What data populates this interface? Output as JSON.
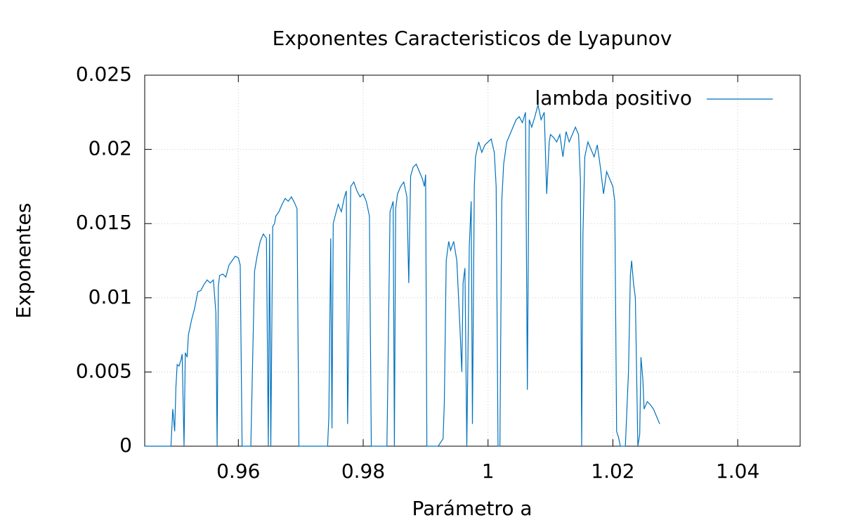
{
  "chart_data": {
    "type": "line",
    "title": "Exponentes Caracteristicos de Lyapunov",
    "x_label": "Parámetro a",
    "y_label": "Exponentes",
    "xlim": [
      0.945,
      1.05
    ],
    "ylim": [
      0,
      0.025
    ],
    "xticks": [
      0.96,
      0.98,
      1,
      1.02,
      1.04
    ],
    "yticks": [
      0,
      0.005,
      0.01,
      0.015,
      0.02,
      0.025
    ],
    "grid": true,
    "legend": "top-right",
    "x": [
      0.945,
      0.9492,
      0.9495,
      0.9498,
      0.95,
      0.9502,
      0.9505,
      0.9508,
      0.951,
      0.9513,
      0.9515,
      0.9518,
      0.952,
      0.9525,
      0.953,
      0.9535,
      0.954,
      0.9545,
      0.955,
      0.9555,
      0.956,
      0.9564,
      0.9566,
      0.9568,
      0.957,
      0.9575,
      0.958,
      0.9585,
      0.959,
      0.9595,
      0.96,
      0.9603,
      0.9606,
      0.9615,
      0.962,
      0.9623,
      0.9626,
      0.963,
      0.9635,
      0.964,
      0.9645,
      0.9648,
      0.965,
      0.9652,
      0.9655,
      0.9658,
      0.966,
      0.9665,
      0.967,
      0.9675,
      0.968,
      0.9685,
      0.969,
      0.9694,
      0.9697,
      0.972,
      0.9743,
      0.9745,
      0.9748,
      0.975,
      0.9752,
      0.9755,
      0.976,
      0.9765,
      0.977,
      0.9773,
      0.9775,
      0.978,
      0.9785,
      0.979,
      0.9795,
      0.98,
      0.9805,
      0.981,
      0.9813,
      0.9825,
      0.9838,
      0.984,
      0.9843,
      0.9848,
      0.985,
      0.9852,
      0.9855,
      0.986,
      0.9865,
      0.987,
      0.9873,
      0.9876,
      0.988,
      0.9885,
      0.989,
      0.9895,
      0.9898,
      0.99,
      0.9902,
      0.991,
      0.992,
      0.9928,
      0.993,
      0.9933,
      0.9937,
      0.994,
      0.9945,
      0.995,
      0.9955,
      0.9958,
      0.996,
      0.9963,
      0.9966,
      0.997,
      0.9973,
      0.9975,
      0.9978,
      0.998,
      0.9985,
      0.999,
      0.9995,
      1.0,
      1.0005,
      1.001,
      1.0013,
      1.0016,
      1.0019,
      1.0022,
      1.0025,
      1.003,
      1.0035,
      1.004,
      1.0045,
      1.005,
      1.0055,
      1.006,
      1.0063,
      1.0066,
      1.007,
      1.0075,
      1.008,
      1.0085,
      1.009,
      1.0094,
      1.0098,
      1.01,
      1.0105,
      1.011,
      1.0115,
      1.012,
      1.0125,
      1.013,
      1.0135,
      1.014,
      1.0145,
      1.0148,
      1.015,
      1.0152,
      1.0155,
      1.016,
      1.0165,
      1.017,
      1.0175,
      1.018,
      1.0185,
      1.019,
      1.0195,
      1.02,
      1.0203,
      1.0206,
      1.0209,
      1.0212,
      1.0215,
      1.022,
      1.0225,
      1.0228,
      1.023,
      1.0233,
      1.0236,
      1.024,
      1.0243,
      1.0245,
      1.0248,
      1.025,
      1.0255,
      1.026,
      1.0265,
      1.027,
      1.0275
    ],
    "series": [
      {
        "name": "lambda positivo",
        "color": "#0072bd",
        "values": [
          0,
          0,
          0.0025,
          0.001,
          0.004,
          0.0055,
          0.0054,
          0.0058,
          0.0062,
          0,
          0.0063,
          0.006,
          0.0075,
          0.0085,
          0.0093,
          0.0104,
          0.0105,
          0.0109,
          0.0112,
          0.011,
          0.0112,
          0.009,
          0,
          0.0108,
          0.0115,
          0.0116,
          0.0114,
          0.0122,
          0.0125,
          0.0128,
          0.0127,
          0.0122,
          0,
          0,
          0,
          0.006,
          0.0118,
          0.0128,
          0.0138,
          0.0143,
          0.014,
          0,
          0.0143,
          0,
          0.0148,
          0.015,
          0.0155,
          0.0158,
          0.0163,
          0.0167,
          0.0165,
          0.0168,
          0.0164,
          0.016,
          0,
          0,
          0,
          0.002,
          0.014,
          0.0012,
          0.015,
          0.0155,
          0.0163,
          0.0158,
          0.0168,
          0.0172,
          0.0015,
          0.0175,
          0.0178,
          0.0172,
          0.0168,
          0.017,
          0.0165,
          0.0155,
          0,
          0,
          0,
          0.006,
          0.0158,
          0.0165,
          0,
          0.016,
          0.017,
          0.0175,
          0.0178,
          0.0168,
          0.011,
          0.0182,
          0.0188,
          0.019,
          0.0185,
          0.018,
          0.0175,
          0.0183,
          0,
          0,
          0,
          0.0005,
          0.003,
          0.0125,
          0.0138,
          0.0132,
          0.0138,
          0.0125,
          0.008,
          0.005,
          0.011,
          0.012,
          0,
          0.0135,
          0.0165,
          0.0015,
          0.0175,
          0.0195,
          0.0205,
          0.0198,
          0.0203,
          0.0205,
          0.0207,
          0.0198,
          0.0175,
          0,
          0,
          0.0165,
          0.019,
          0.0205,
          0.021,
          0.0215,
          0.022,
          0.0222,
          0.0218,
          0.0225,
          0.0038,
          0.022,
          0.0215,
          0.0222,
          0.023,
          0.022,
          0.0225,
          0.017,
          0.0205,
          0.021,
          0.0208,
          0.0205,
          0.021,
          0.0195,
          0.0212,
          0.0205,
          0.021,
          0.0215,
          0.021,
          0.018,
          0,
          0.0142,
          0.0195,
          0.0205,
          0.02,
          0.0195,
          0.0203,
          0.0188,
          0.017,
          0.0185,
          0.018,
          0.0175,
          0.0165,
          0.001,
          0.0006,
          0,
          0,
          0,
          0.005,
          0.0115,
          0.0125,
          0.011,
          0.01,
          0,
          0.0008,
          0.006,
          0.0045,
          0.0025,
          0.003,
          0.0028,
          0.0025,
          0.002,
          0.0015
        ]
      }
    ]
  }
}
